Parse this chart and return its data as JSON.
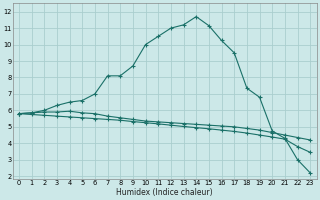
{
  "xlabel": "Humidex (Indice chaleur)",
  "bg_color": "#cce8e8",
  "grid_color": "#aacece",
  "line_color": "#1a7068",
  "xlim": [
    -0.5,
    23.5
  ],
  "ylim": [
    1.8,
    12.5
  ],
  "xticks": [
    0,
    1,
    2,
    3,
    4,
    5,
    6,
    7,
    8,
    9,
    10,
    11,
    12,
    13,
    14,
    15,
    16,
    17,
    18,
    19,
    20,
    21,
    22,
    23
  ],
  "yticks": [
    2,
    3,
    4,
    5,
    6,
    7,
    8,
    9,
    10,
    11,
    12
  ],
  "line_up_x": [
    0,
    1,
    2,
    3,
    4,
    5,
    6,
    7,
    8,
    9,
    10,
    11,
    12,
    13,
    14,
    15,
    16,
    17,
    18,
    19,
    20,
    21,
    22,
    23
  ],
  "line_up_y": [
    5.8,
    5.85,
    6.0,
    6.3,
    6.5,
    6.6,
    7.0,
    8.1,
    8.1,
    8.7,
    10.0,
    10.5,
    11.0,
    11.2,
    11.7,
    11.15,
    10.25,
    9.5,
    7.35,
    6.8,
    4.75,
    4.3,
    3.0,
    2.2
  ],
  "line_mid_x": [
    0,
    1,
    2,
    3,
    4,
    5,
    6,
    7,
    8,
    9,
    10,
    11,
    12,
    13,
    14,
    15,
    16,
    17,
    18,
    19,
    20,
    21,
    22,
    23
  ],
  "line_mid_y": [
    5.8,
    5.85,
    5.9,
    5.9,
    5.95,
    5.85,
    5.8,
    5.65,
    5.55,
    5.45,
    5.35,
    5.3,
    5.25,
    5.2,
    5.15,
    5.1,
    5.05,
    5.0,
    4.9,
    4.8,
    4.65,
    4.5,
    4.35,
    4.2
  ],
  "line_low_x": [
    0,
    1,
    2,
    3,
    4,
    5,
    6,
    7,
    8,
    9,
    10,
    11,
    12,
    13,
    14,
    15,
    16,
    17,
    18,
    19,
    20,
    21,
    22,
    23
  ],
  "line_low_y": [
    5.8,
    5.75,
    5.7,
    5.65,
    5.6,
    5.55,
    5.5,
    5.45,
    5.4,
    5.32,
    5.25,
    5.18,
    5.1,
    5.02,
    4.95,
    4.88,
    4.8,
    4.72,
    4.62,
    4.5,
    4.38,
    4.25,
    3.8,
    3.45
  ]
}
